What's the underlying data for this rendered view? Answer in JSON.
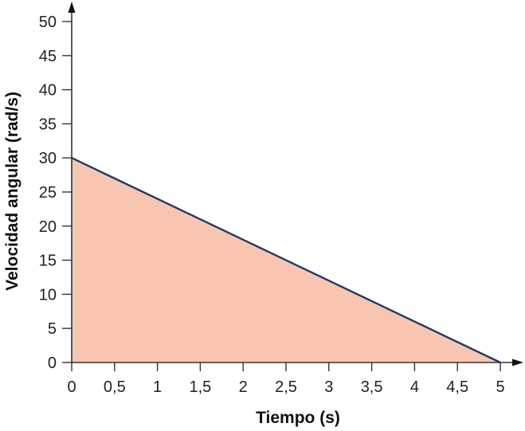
{
  "chart_data": {
    "type": "area",
    "title": "",
    "xlabel": "Tiempo (s)",
    "ylabel": "Velocidad angular (rad/s)",
    "x": [
      0,
      5
    ],
    "series": [
      {
        "name": "Velocidad angular",
        "values": [
          30,
          0
        ],
        "line_color": "#1f3a68",
        "fill_color": "#f8c6b0"
      }
    ],
    "xlim": [
      0,
      5
    ],
    "ylim": [
      0,
      50
    ],
    "x_ticks": [
      0,
      0.5,
      1,
      1.5,
      2,
      2.5,
      3,
      3.5,
      4,
      4.5,
      5
    ],
    "x_tick_labels": [
      "0",
      "0,5",
      "1",
      "1,5",
      "2",
      "2,5",
      "3",
      "3,5",
      "4",
      "4,5",
      "5"
    ],
    "y_ticks": [
      0,
      5,
      10,
      15,
      20,
      25,
      30,
      35,
      40,
      45,
      50
    ],
    "y_tick_labels": [
      "0",
      "5",
      "10",
      "15",
      "20",
      "25",
      "30",
      "35",
      "40",
      "45",
      "50"
    ],
    "grid": false,
    "legend": null
  },
  "axes": {
    "x_title": "Tiempo (s)",
    "y_title": "Velocidad angular (rad/s)"
  }
}
